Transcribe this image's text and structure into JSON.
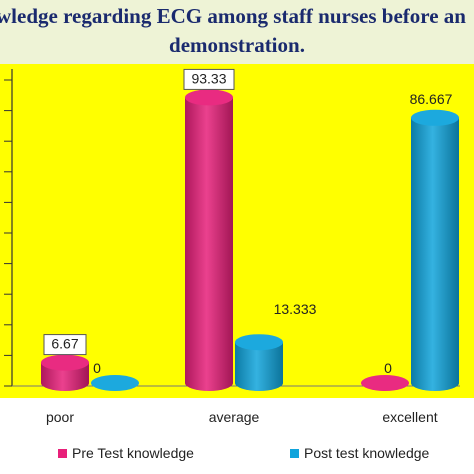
{
  "title": {
    "line1": "wledge regarding ECG among staff nurses before an",
    "line2": "demonstration."
  },
  "colors": {
    "plot_background": "#ffff00",
    "page_background": "#ffffff",
    "title_background": "#eef3d6",
    "title_text": "#1a2a6e",
    "pre_test": "#e8207a",
    "post_test": "#10a4dc"
  },
  "chart_data": {
    "type": "bar",
    "style": "3d-cylinder",
    "categories": [
      "poor",
      "average",
      "excellent"
    ],
    "series": [
      {
        "name": "Pre Test knowledge",
        "values": [
          6.67,
          93.33,
          0
        ],
        "labels": [
          "6.67",
          "93.33",
          "0"
        ]
      },
      {
        "name": "Post test knowledge",
        "values": [
          0,
          13.333,
          86.667
        ],
        "labels": [
          "0",
          "13.333",
          "86.667"
        ]
      }
    ],
    "ylim": [
      0,
      100
    ],
    "grid": false,
    "legend": "bottom"
  }
}
